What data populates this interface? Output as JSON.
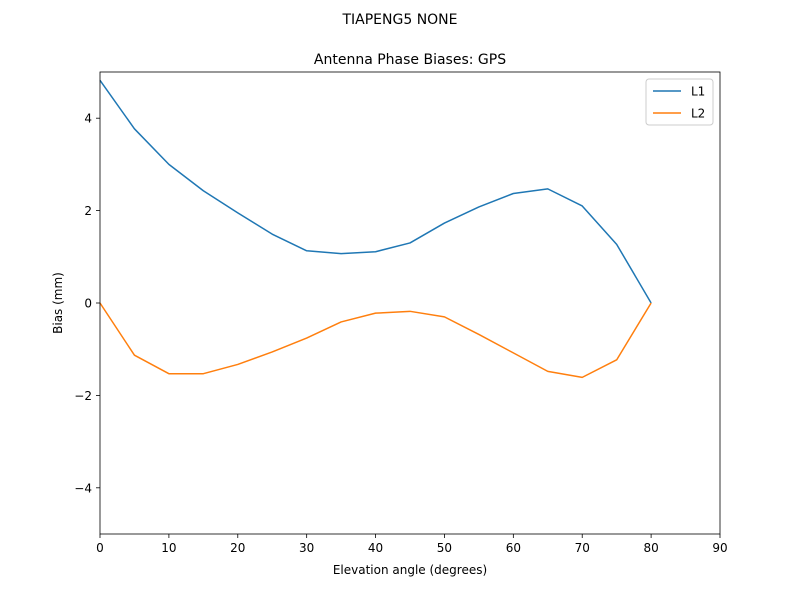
{
  "suptitle": "TIAPENG5         NONE",
  "chart_data": {
    "type": "line",
    "title": "Antenna Phase Biases: GPS",
    "xlabel": "Elevation angle (degrees)",
    "ylabel": "Bias (mm)",
    "xlim": [
      0,
      90
    ],
    "ylim": [
      -5,
      5
    ],
    "xticks": [
      0,
      10,
      20,
      30,
      40,
      50,
      60,
      70,
      80,
      90
    ],
    "yticks": [
      4,
      2,
      0,
      -2,
      -4
    ],
    "xtick_labels": [
      "0",
      "10",
      "20",
      "30",
      "40",
      "50",
      "60",
      "70",
      "80",
      "90"
    ],
    "ytick_labels": [
      "4",
      "2",
      "0",
      "−2",
      "−4"
    ],
    "grid": false,
    "legend_position": "top-right",
    "x": [
      0,
      5,
      10,
      15,
      20,
      25,
      30,
      35,
      40,
      45,
      50,
      55,
      60,
      65,
      70,
      75,
      80
    ],
    "series": [
      {
        "name": "L1",
        "color": "#1f77b4",
        "values": [
          4.82,
          3.77,
          3.0,
          2.43,
          1.95,
          1.49,
          1.13,
          1.07,
          1.11,
          1.3,
          1.73,
          2.08,
          2.37,
          2.47,
          2.1,
          1.27,
          0.0
        ]
      },
      {
        "name": "L2",
        "color": "#ff7f0e",
        "values": [
          0.0,
          -1.13,
          -1.53,
          -1.53,
          -1.33,
          -1.06,
          -0.76,
          -0.41,
          -0.22,
          -0.18,
          -0.3,
          -0.68,
          -1.08,
          -1.48,
          -1.61,
          -1.23,
          0.0
        ]
      }
    ]
  }
}
